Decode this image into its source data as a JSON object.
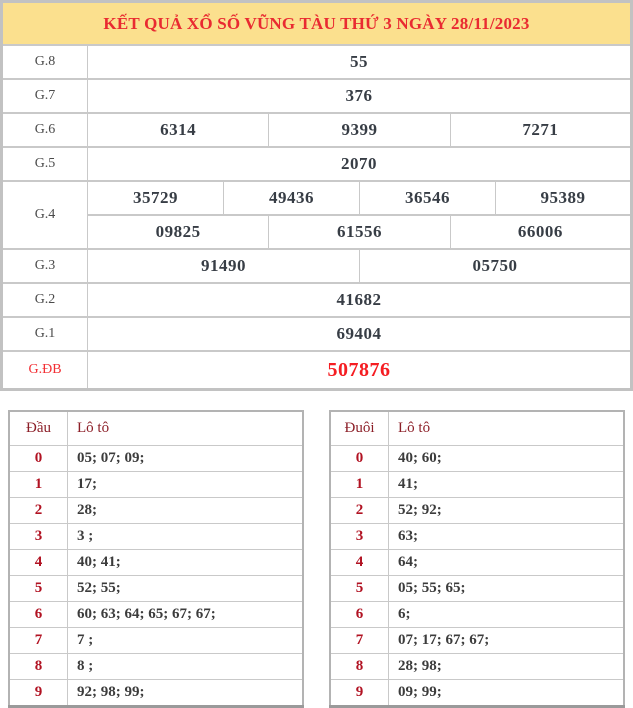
{
  "title": "KẾT QUẢ XỔ SỐ VŨNG TÀU THỨ 3 NGÀY 28/11/2023",
  "colors": {
    "title_background": "#fbe08e",
    "title_text": "#e92a31",
    "special_prize_red": "#f51d22",
    "prize_number": "#373d45",
    "loto_header_maroon": "#8c1f28",
    "loto_digit_red": "#b11222",
    "border_gray": "#c9c9c9"
  },
  "prize_table": {
    "rows": [
      {
        "label": "G.8",
        "lines": [
          [
            "55"
          ]
        ]
      },
      {
        "label": "G.7",
        "lines": [
          [
            "376"
          ]
        ]
      },
      {
        "label": "G.6",
        "lines": [
          [
            "6314",
            "9399",
            "7271"
          ]
        ]
      },
      {
        "label": "G.5",
        "lines": [
          [
            "2070"
          ]
        ]
      },
      {
        "label": "G.4",
        "lines": [
          [
            "35729",
            "49436",
            "36546",
            "95389"
          ],
          [
            "09825",
            "61556",
            "66006"
          ]
        ]
      },
      {
        "label": "G.3",
        "lines": [
          [
            "91490",
            "05750"
          ]
        ]
      },
      {
        "label": "G.2",
        "lines": [
          [
            "41682"
          ]
        ]
      },
      {
        "label": "G.1",
        "lines": [
          [
            "69404"
          ]
        ]
      },
      {
        "label": "G.ĐB",
        "lines": [
          [
            "507876"
          ]
        ],
        "special": true
      }
    ]
  },
  "dau_table": {
    "headers": [
      "Đầu",
      "Lô tô"
    ],
    "rows": [
      {
        "digit": "0",
        "loto": "05; 07; 09;"
      },
      {
        "digit": "1",
        "loto": "17;"
      },
      {
        "digit": "2",
        "loto": "28;"
      },
      {
        "digit": "3",
        "loto": "3 ;"
      },
      {
        "digit": "4",
        "loto": "40; 41;"
      },
      {
        "digit": "5",
        "loto": "52; 55;"
      },
      {
        "digit": "6",
        "loto": "60; 63; 64; 65; 67; 67;"
      },
      {
        "digit": "7",
        "loto": "7 ;"
      },
      {
        "digit": "8",
        "loto": "8 ;"
      },
      {
        "digit": "9",
        "loto": "92; 98; 99;"
      }
    ]
  },
  "duoi_table": {
    "headers": [
      "Đuôi",
      "Lô tô"
    ],
    "rows": [
      {
        "digit": "0",
        "loto": "40; 60;"
      },
      {
        "digit": "1",
        "loto": "41;"
      },
      {
        "digit": "2",
        "loto": "52; 92;"
      },
      {
        "digit": "3",
        "loto": "63;"
      },
      {
        "digit": "4",
        "loto": "64;"
      },
      {
        "digit": "5",
        "loto": "05; 55; 65;"
      },
      {
        "digit": "6",
        "loto": "6;"
      },
      {
        "digit": "7",
        "loto": "07; 17; 67; 67;"
      },
      {
        "digit": "8",
        "loto": "28; 98;"
      },
      {
        "digit": "9",
        "loto": "09; 99;"
      }
    ]
  }
}
